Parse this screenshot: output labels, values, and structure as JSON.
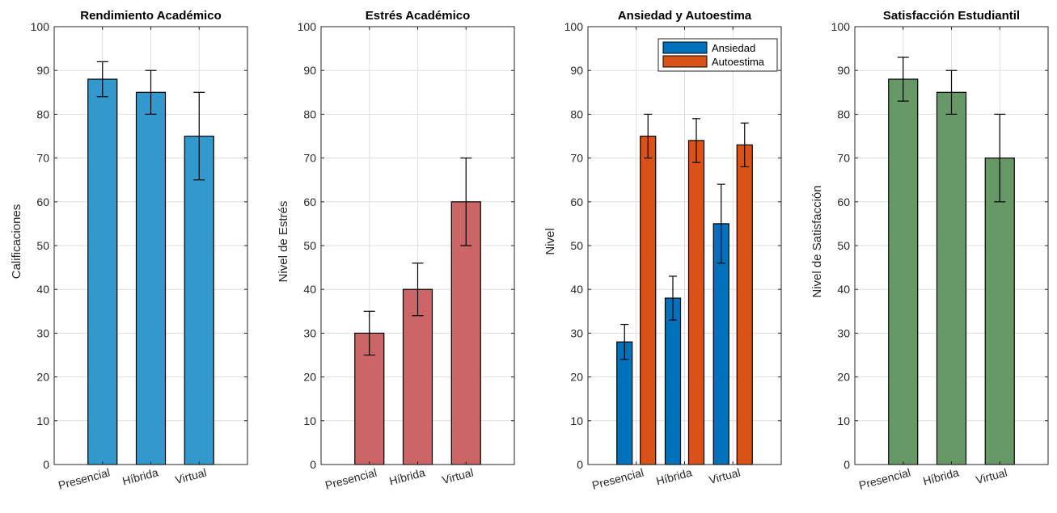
{
  "chart_data": [
    {
      "type": "bar",
      "title": "Rendimiento Académico",
      "xlabel": "",
      "ylabel": "Calificaciones",
      "categories": [
        "Presencial",
        "Híbrida",
        "Virtual"
      ],
      "series": [
        {
          "values": [
            88,
            85,
            75
          ],
          "errors": [
            4,
            5,
            10
          ],
          "color": "#3399CC"
        }
      ],
      "ylim": [
        0,
        100
      ],
      "yticks": [
        0,
        10,
        20,
        30,
        40,
        50,
        60,
        70,
        80,
        90,
        100
      ],
      "grid": true
    },
    {
      "type": "bar",
      "title": "Estrés Académico",
      "xlabel": "",
      "ylabel": "Nivel de Estrés",
      "categories": [
        "Presencial",
        "Híbrida",
        "Virtual"
      ],
      "series": [
        {
          "values": [
            30,
            40,
            60
          ],
          "errors": [
            5,
            6,
            10
          ],
          "color": "#CC6666"
        }
      ],
      "ylim": [
        0,
        100
      ],
      "yticks": [
        0,
        10,
        20,
        30,
        40,
        50,
        60,
        70,
        80,
        90,
        100
      ],
      "grid": true
    },
    {
      "type": "bar",
      "title": "Ansiedad y Autoestima",
      "xlabel": "",
      "ylabel": "Nivel",
      "categories": [
        "Presencial",
        "Híbrida",
        "Virtual"
      ],
      "series": [
        {
          "name": "Ansiedad",
          "values": [
            28,
            38,
            55
          ],
          "errors": [
            4,
            5,
            9
          ],
          "color": "#0072BD"
        },
        {
          "name": "Autoestima",
          "values": [
            75,
            74,
            73
          ],
          "errors": [
            5,
            5,
            5
          ],
          "color": "#D95319"
        }
      ],
      "ylim": [
        0,
        100
      ],
      "yticks": [
        0,
        10,
        20,
        30,
        40,
        50,
        60,
        70,
        80,
        90,
        100
      ],
      "grid": true,
      "legend_position": "top-right"
    },
    {
      "type": "bar",
      "title": "Satisfacción Estudiantil",
      "xlabel": "",
      "ylabel": "Nivel de Satisfacción",
      "categories": [
        "Presencial",
        "Híbrida",
        "Virtual"
      ],
      "series": [
        {
          "values": [
            88,
            85,
            70
          ],
          "errors": [
            5,
            5,
            10
          ],
          "color": "#669966"
        }
      ],
      "ylim": [
        0,
        100
      ],
      "yticks": [
        0,
        10,
        20,
        30,
        40,
        50,
        60,
        70,
        80,
        90,
        100
      ],
      "grid": true
    }
  ]
}
